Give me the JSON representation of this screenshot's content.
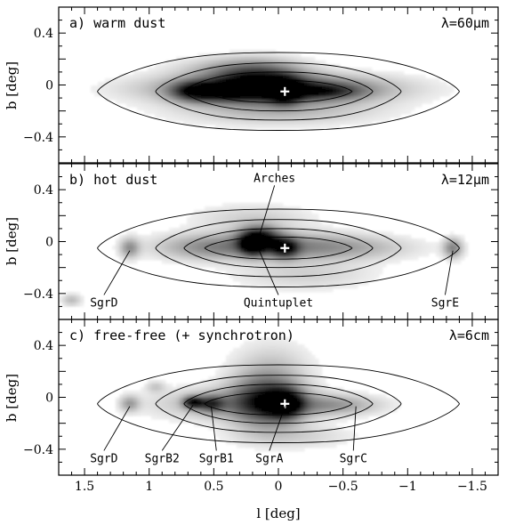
{
  "chart_data": {
    "type": "heatmap",
    "xlabel": "l [deg]",
    "ylabel": "b [deg]",
    "xlim": [
      1.7,
      -1.7
    ],
    "ylim": [
      -0.6,
      0.6
    ],
    "x_ticks": [
      1.5,
      1,
      0.5,
      0,
      -0.5,
      -1,
      -1.5
    ],
    "x_tick_labels": [
      "1.5",
      "1",
      "0.5",
      "0",
      "−0.5",
      "−1",
      "−1.5"
    ],
    "y_ticks": [
      0.4,
      0,
      -0.4
    ],
    "y_tick_labels": [
      "0.4",
      "0",
      "−0.4"
    ],
    "center_marker": {
      "l": -0.05,
      "b": -0.05,
      "symbol": "+"
    },
    "contours": [
      {
        "a": 1.4,
        "b": 0.3,
        "l0": 0.0,
        "b0": -0.05
      },
      {
        "a": 0.95,
        "b": 0.22,
        "l0": 0.0,
        "b0": -0.05
      },
      {
        "a": 0.73,
        "b": 0.15,
        "l0": 0.0,
        "b0": -0.05
      },
      {
        "a": 0.57,
        "b": 0.085,
        "l0": 0.0,
        "b0": -0.05
      }
    ],
    "panels": [
      {
        "label": "a) warm dust",
        "wavelength": "λ=60μm",
        "emission": [
          {
            "l": 0.05,
            "b": -0.03,
            "sl": 0.55,
            "sb": 0.07,
            "intensity": 0.75
          },
          {
            "l": 0.15,
            "b": 0.02,
            "sl": 0.22,
            "sb": 0.09,
            "intensity": 0.7
          },
          {
            "l": -0.05,
            "b": -0.05,
            "sl": 0.08,
            "sb": 0.06,
            "intensity": 1.0
          },
          {
            "l": 0.45,
            "b": -0.05,
            "sl": 0.18,
            "sb": 0.05,
            "intensity": 0.6
          },
          {
            "l": 0.65,
            "b": -0.05,
            "sl": 0.12,
            "sb": 0.05,
            "intensity": 0.55
          },
          {
            "l": -0.35,
            "b": -0.05,
            "sl": 0.2,
            "sb": 0.04,
            "intensity": 0.45
          },
          {
            "l": 0.0,
            "b": -0.2,
            "sl": 0.5,
            "sb": 0.07,
            "intensity": 0.2
          },
          {
            "l": 0.3,
            "b": 0.12,
            "sl": 0.3,
            "sb": 0.06,
            "intensity": 0.25
          }
        ],
        "annotations": []
      },
      {
        "label": "b) hot dust",
        "wavelength": "λ=12μm",
        "emission": [
          {
            "l": 0.15,
            "b": 0.02,
            "sl": 0.1,
            "sb": 0.06,
            "intensity": 1.0
          },
          {
            "l": 0.2,
            "b": -0.03,
            "sl": 0.06,
            "sb": 0.05,
            "intensity": 0.8
          },
          {
            "l": -0.05,
            "b": -0.05,
            "sl": 0.07,
            "sb": 0.05,
            "intensity": 0.8
          },
          {
            "l": 0.1,
            "b": -0.03,
            "sl": 0.45,
            "sb": 0.07,
            "intensity": 0.35
          },
          {
            "l": 0.55,
            "b": -0.05,
            "sl": 0.25,
            "sb": 0.06,
            "intensity": 0.2
          },
          {
            "l": -0.5,
            "b": -0.05,
            "sl": 0.35,
            "sb": 0.06,
            "intensity": 0.2
          },
          {
            "l": 1.15,
            "b": -0.05,
            "sl": 0.05,
            "sb": 0.05,
            "intensity": 0.35
          },
          {
            "l": -1.35,
            "b": -0.05,
            "sl": 0.05,
            "sb": 0.05,
            "intensity": 0.4
          },
          {
            "l": 0.2,
            "b": 0.18,
            "sl": 0.3,
            "sb": 0.07,
            "intensity": 0.12
          },
          {
            "l": -0.2,
            "b": -0.25,
            "sl": 0.35,
            "sb": 0.08,
            "intensity": 0.12
          },
          {
            "l": 1.6,
            "b": -0.45,
            "sl": 0.05,
            "sb": 0.03,
            "intensity": 0.2
          }
        ],
        "annotations": [
          {
            "text": "Arches",
            "l": 0.15,
            "b": 0.04,
            "tl": 0.03,
            "tb": 0.46
          },
          {
            "text": "Quintuplet",
            "l": 0.17,
            "b": -0.02,
            "tl": 0.0,
            "tb": -0.5
          },
          {
            "text": "SgrD",
            "l": 1.15,
            "b": -0.07,
            "tl": 1.35,
            "tb": -0.5
          },
          {
            "text": "SgrE",
            "l": -1.35,
            "b": -0.07,
            "tl": -1.29,
            "tb": -0.5
          }
        ]
      },
      {
        "label": "c) free-free (+ synchrotron)",
        "wavelength": "λ=6cm",
        "emission": [
          {
            "l": -0.05,
            "b": -0.05,
            "sl": 0.09,
            "sb": 0.07,
            "intensity": 1.0
          },
          {
            "l": 0.1,
            "b": -0.03,
            "sl": 0.17,
            "sb": 0.13,
            "intensity": 0.7
          },
          {
            "l": 0.66,
            "b": -0.04,
            "sl": 0.05,
            "sb": 0.03,
            "intensity": 0.9
          },
          {
            "l": 0.52,
            "b": -0.05,
            "sl": 0.07,
            "sb": 0.04,
            "intensity": 0.6
          },
          {
            "l": 0.3,
            "b": -0.05,
            "sl": 0.4,
            "sb": 0.08,
            "intensity": 0.3
          },
          {
            "l": -0.4,
            "b": -0.06,
            "sl": 0.25,
            "sb": 0.05,
            "intensity": 0.3
          },
          {
            "l": 0.05,
            "b": 0.2,
            "sl": 0.2,
            "sb": 0.15,
            "intensity": 0.15
          },
          {
            "l": 1.15,
            "b": -0.05,
            "sl": 0.05,
            "sb": 0.04,
            "intensity": 0.3
          },
          {
            "l": 0.95,
            "b": 0.08,
            "sl": 0.05,
            "sb": 0.03,
            "intensity": 0.15
          },
          {
            "l": -0.1,
            "b": -0.3,
            "sl": 0.3,
            "sb": 0.06,
            "intensity": 0.12
          }
        ],
        "annotations": [
          {
            "text": "SgrD",
            "l": 1.15,
            "b": -0.07,
            "tl": 1.35,
            "tb": -0.5
          },
          {
            "text": "SgrB2",
            "l": 0.66,
            "b": -0.06,
            "tl": 0.9,
            "tb": -0.5
          },
          {
            "text": "SgrB1",
            "l": 0.52,
            "b": -0.07,
            "tl": 0.48,
            "tb": -0.5
          },
          {
            "text": "SgrA",
            "l": -0.05,
            "b": -0.07,
            "tl": 0.07,
            "tb": -0.5
          },
          {
            "text": "SgrC",
            "l": -0.6,
            "b": -0.07,
            "tl": -0.58,
            "tb": -0.5
          }
        ]
      }
    ]
  }
}
